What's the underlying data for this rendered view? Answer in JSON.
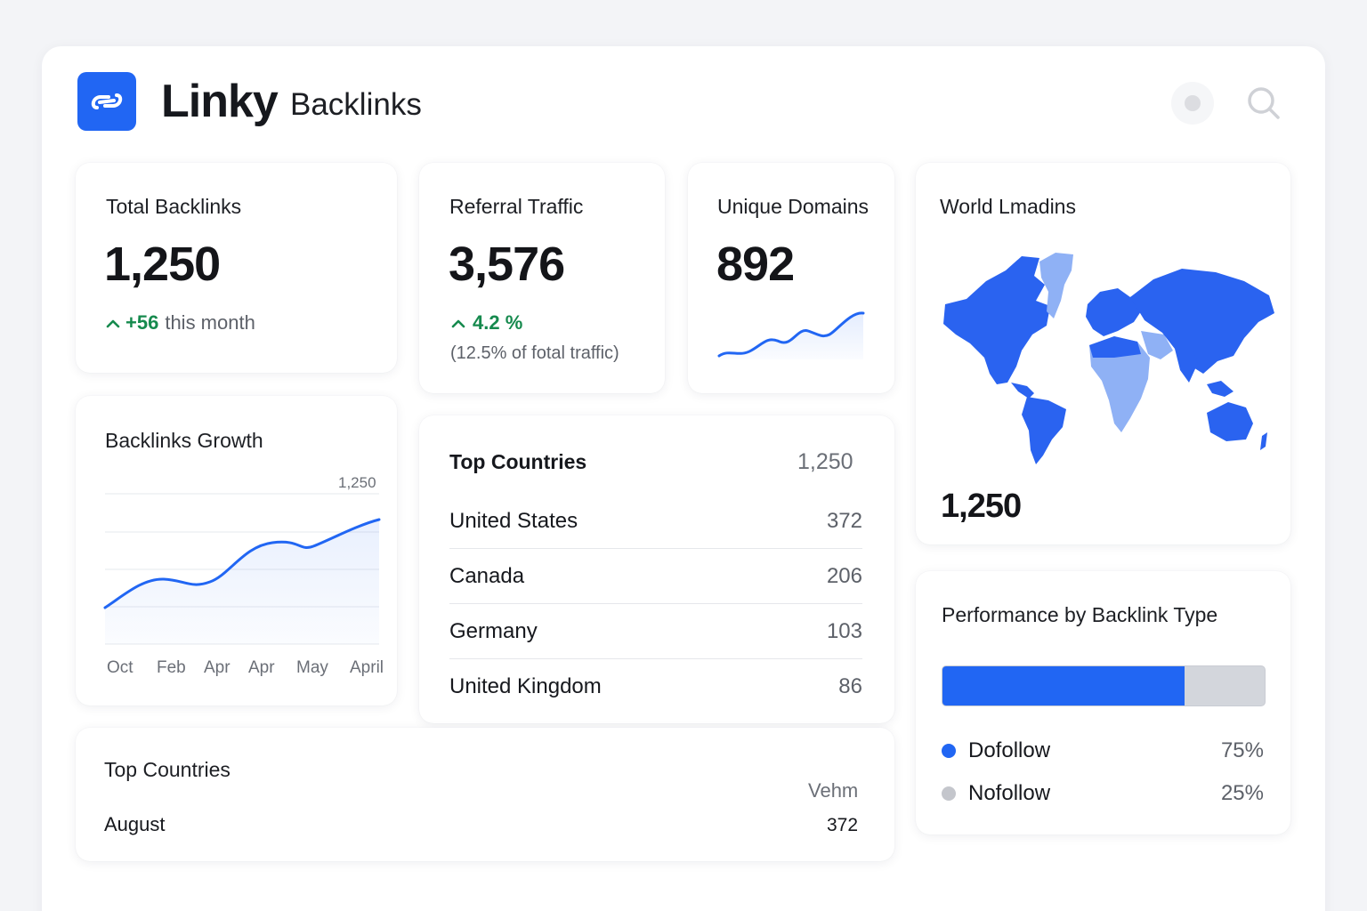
{
  "header": {
    "app_name": "Linky",
    "section": "Backlinks",
    "logo_icon": "link-icon",
    "actions": [
      "status-dot-icon",
      "search-icon"
    ]
  },
  "total_backlinks": {
    "title": "Total Backlinks",
    "value": "1,250",
    "change": "+56",
    "change_suffix": "this month"
  },
  "referral_traffic": {
    "title": "Referral Traffic",
    "value": "3,576",
    "change": "4.2 %",
    "note": "(12.5% of fotal traffic)"
  },
  "unique_domains": {
    "title": "Unique Domains",
    "value": "892"
  },
  "world_map": {
    "title": "World Lmadins",
    "value": "1,250"
  },
  "backlinks_growth": {
    "title": "Backlinks Growth",
    "peak_label": "1,250",
    "x_labels": [
      "Oct",
      "Feb",
      "Apr",
      "Apr",
      "May",
      "April"
    ]
  },
  "top_countries": {
    "title": "Top Countries",
    "total": "1,250",
    "rows": [
      {
        "country": "United States",
        "value": "372"
      },
      {
        "country": "Canada",
        "value": "206"
      },
      {
        "country": "Germany",
        "value": "103"
      },
      {
        "country": "United Kingdom",
        "value": "86"
      }
    ]
  },
  "top_countries_bottom": {
    "title": "Top Countries",
    "column_label": "Vehm",
    "row_label": "August",
    "row_value": "372"
  },
  "performance": {
    "title": "Performance by Backlink Type",
    "dofollow_fraction": 0.75,
    "items": [
      {
        "label": "Dofollow",
        "pct": "75%",
        "color": "#2166f3"
      },
      {
        "label": "Nofollow",
        "pct": "25%",
        "color": "#c4c6cc"
      }
    ]
  },
  "colors": {
    "accent": "#2166f3",
    "positive": "#168a4e",
    "map_dark": "#2a63f0",
    "map_light": "#8fb1f5"
  }
}
